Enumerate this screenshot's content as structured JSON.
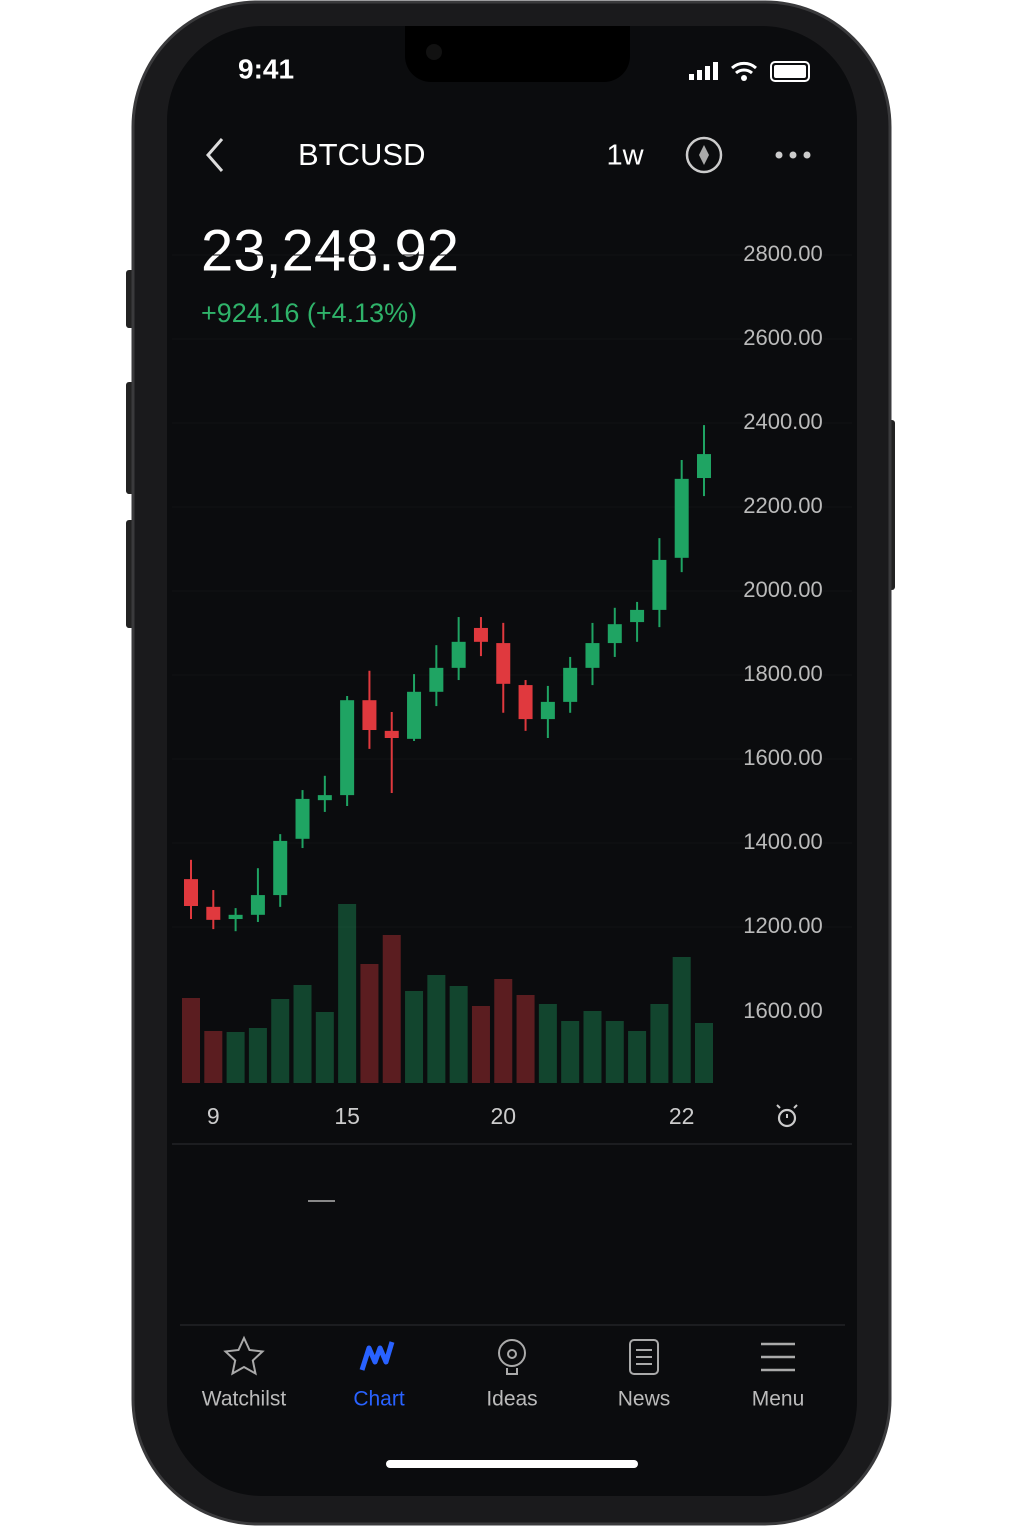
{
  "status_bar": {
    "time": "9:41"
  },
  "header": {
    "symbol": "BTCUSD",
    "interval": "1w"
  },
  "quote": {
    "price": "23,248.92",
    "change": "+924.16 (+4.13%)"
  },
  "chart_data": {
    "type": "candlestick",
    "categories": [
      null,
      "9",
      null,
      null,
      null,
      null,
      null,
      "15",
      null,
      null,
      null,
      null,
      null,
      null,
      "20",
      null,
      null,
      null,
      null,
      null,
      null,
      null,
      "22",
      null
    ],
    "open": [
      1314,
      1248,
      1219,
      1229,
      1276,
      1410,
      1502,
      1514,
      1740,
      1667,
      1648,
      1760,
      1817,
      1912,
      1876,
      1776,
      1695,
      1736,
      1817,
      1876,
      1926,
      1955,
      2079,
      2269
    ],
    "high": [
      1360,
      1288,
      1245,
      1340,
      1421,
      1526,
      1560,
      1750,
      1810,
      1712,
      1802,
      1871,
      1938,
      1938,
      1924,
      1788,
      1774,
      1843,
      1924,
      1960,
      1974,
      2126,
      2312,
      2395
    ],
    "low": [
      1219,
      1195,
      1190,
      1212,
      1248,
      1388,
      1474,
      1488,
      1624,
      1519,
      1643,
      1726,
      1788,
      1845,
      1710,
      1667,
      1650,
      1710,
      1776,
      1843,
      1879,
      1914,
      2045,
      2226
    ],
    "close": [
      1250,
      1217,
      1229,
      1276,
      1405,
      1505,
      1514,
      1740,
      1669,
      1650,
      1760,
      1817,
      1879,
      1879,
      1779,
      1695,
      1736,
      1817,
      1876,
      1921,
      1955,
      2074,
      2267,
      2326
    ],
    "volume": [
      85,
      52,
      51,
      55,
      84,
      98,
      71,
      179,
      119,
      148,
      92,
      108,
      97,
      77,
      104,
      88,
      79,
      62,
      72,
      62,
      52,
      79,
      126,
      60
    ],
    "up_color": "#1fa463",
    "down_color": "#e0393e",
    "ylim": [
      1000,
      2850
    ],
    "yticks": [
      {
        "value": 1200,
        "label": "1200.00"
      },
      {
        "value": 1400,
        "label": "1400.00"
      },
      {
        "value": 1600,
        "label": "1600.00"
      },
      {
        "value": 1800,
        "label": "1800.00"
      },
      {
        "value": 2000,
        "label": "2000.00"
      },
      {
        "value": 2200,
        "label": "2200.00"
      },
      {
        "value": 2400,
        "label": "2400.00"
      },
      {
        "value": 2600,
        "label": "2600.00"
      },
      {
        "value": 2800,
        "label": "2800.00"
      }
    ],
    "volume_axis_label": "1600.00"
  },
  "tab_bar": {
    "tabs": [
      "Watchilst",
      "Chart",
      "Ideas",
      "News",
      "Menu"
    ],
    "active": 1
  }
}
